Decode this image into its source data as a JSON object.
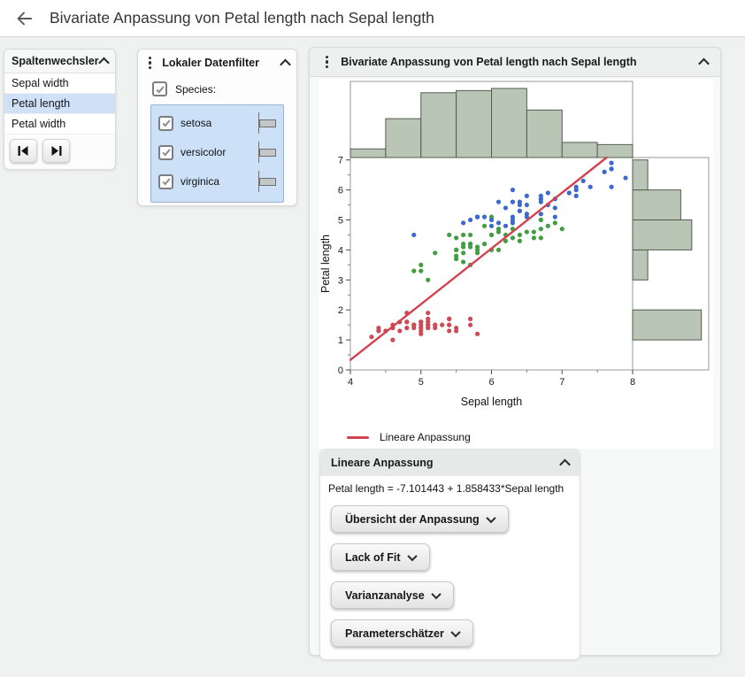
{
  "app_header": {
    "title": "Bivariate Anpassung von Petal length nach Sepal length"
  },
  "column_switcher": {
    "title": "Spaltenwechsler",
    "items": [
      "Sepal width",
      "Petal length",
      "Petal width"
    ],
    "selected_item": "Petal length"
  },
  "data_filter": {
    "title": "Lokaler Datenfilter",
    "group_label": "Species:",
    "levels": [
      "setosa",
      "versicolor",
      "virginica"
    ]
  },
  "report": {
    "title": "Bivariate Anpassung von Petal length nach Sepal length",
    "legend_label": "Lineare Anpassung",
    "fit_panel": {
      "title": "Lineare Anpassung",
      "equation": "Petal length = -7.101443 + 1.858433*Sepal length",
      "buttons": [
        "Übersicht der Anpassung",
        "Lack of Fit",
        "Varianzanalyse",
        "Parameterschätzer"
      ]
    }
  },
  "chart_data": {
    "type": "scatter",
    "title": "Bivariate Anpassung von Petal length nach Sepal length",
    "xlabel": "Sepal length",
    "ylabel": "Petal length",
    "xlim": [
      4,
      8
    ],
    "ylim": [
      0,
      7.08
    ],
    "x_ticks": [
      4,
      5,
      6,
      7,
      8
    ],
    "y_ticks": [
      0,
      1,
      2,
      3,
      4,
      5,
      6,
      7
    ],
    "grid": false,
    "legend_position": "bottom",
    "fit_line": {
      "label": "Lineare Anpassung",
      "intercept": -7.101443,
      "slope": 1.858433,
      "color": "#d5414e"
    },
    "marginal_x_histogram": {
      "axis": "Sepal length",
      "bin_start": 4.0,
      "bin_width": 0.5,
      "counts": [
        4,
        18,
        30,
        31,
        32,
        22,
        7,
        6
      ],
      "fill": "#b9c5b5"
    },
    "marginal_y_histogram": {
      "axis": "Petal length",
      "bin_start": 0,
      "bin_width": 1,
      "counts": [
        0,
        50,
        0,
        11,
        43,
        35,
        11
      ],
      "fill": "#b9c5b5"
    },
    "series": [
      {
        "name": "setosa",
        "color": "#d04955",
        "points": [
          [
            5.1,
            1.4
          ],
          [
            4.9,
            1.4
          ],
          [
            4.7,
            1.3
          ],
          [
            4.6,
            1.5
          ],
          [
            5.0,
            1.4
          ],
          [
            5.4,
            1.7
          ],
          [
            4.6,
            1.4
          ],
          [
            5.0,
            1.5
          ],
          [
            4.4,
            1.4
          ],
          [
            4.9,
            1.5
          ],
          [
            5.4,
            1.5
          ],
          [
            4.8,
            1.6
          ],
          [
            4.8,
            1.4
          ],
          [
            4.3,
            1.1
          ],
          [
            5.8,
            1.2
          ],
          [
            5.7,
            1.5
          ],
          [
            5.4,
            1.3
          ],
          [
            5.1,
            1.4
          ],
          [
            5.7,
            1.7
          ],
          [
            5.1,
            1.5
          ],
          [
            5.4,
            1.7
          ],
          [
            5.1,
            1.5
          ],
          [
            4.6,
            1.0
          ],
          [
            5.1,
            1.7
          ],
          [
            4.8,
            1.9
          ],
          [
            5.0,
            1.6
          ],
          [
            5.0,
            1.6
          ],
          [
            5.2,
            1.5
          ],
          [
            5.2,
            1.4
          ],
          [
            4.7,
            1.6
          ],
          [
            4.8,
            1.6
          ],
          [
            5.4,
            1.5
          ],
          [
            5.2,
            1.5
          ],
          [
            5.5,
            1.4
          ],
          [
            4.9,
            1.5
          ],
          [
            5.0,
            1.2
          ],
          [
            5.5,
            1.3
          ],
          [
            4.9,
            1.5
          ],
          [
            4.4,
            1.3
          ],
          [
            5.1,
            1.5
          ],
          [
            5.0,
            1.3
          ],
          [
            4.5,
            1.3
          ],
          [
            4.4,
            1.3
          ],
          [
            5.0,
            1.6
          ],
          [
            5.1,
            1.9
          ],
          [
            4.8,
            1.4
          ],
          [
            5.1,
            1.6
          ],
          [
            4.6,
            1.4
          ],
          [
            5.3,
            1.5
          ],
          [
            5.0,
            1.4
          ]
        ]
      },
      {
        "name": "versicolor",
        "color": "#3ea03c",
        "points": [
          [
            7.0,
            4.7
          ],
          [
            6.4,
            4.5
          ],
          [
            6.9,
            4.9
          ],
          [
            5.5,
            4.0
          ],
          [
            6.5,
            4.6
          ],
          [
            5.7,
            4.5
          ],
          [
            6.3,
            4.7
          ],
          [
            4.9,
            3.3
          ],
          [
            6.6,
            4.6
          ],
          [
            5.2,
            3.9
          ],
          [
            5.0,
            3.5
          ],
          [
            5.9,
            4.2
          ],
          [
            6.0,
            4.0
          ],
          [
            6.1,
            4.7
          ],
          [
            5.6,
            3.6
          ],
          [
            6.7,
            4.4
          ],
          [
            5.6,
            4.5
          ],
          [
            5.8,
            4.1
          ],
          [
            6.2,
            4.5
          ],
          [
            5.6,
            3.9
          ],
          [
            5.9,
            4.8
          ],
          [
            6.1,
            4.0
          ],
          [
            6.3,
            4.9
          ],
          [
            6.1,
            4.7
          ],
          [
            6.4,
            4.3
          ],
          [
            6.6,
            4.4
          ],
          [
            6.8,
            4.8
          ],
          [
            6.7,
            5.0
          ],
          [
            6.0,
            4.5
          ],
          [
            5.7,
            3.5
          ],
          [
            5.5,
            3.8
          ],
          [
            5.5,
            3.7
          ],
          [
            5.8,
            3.9
          ],
          [
            6.0,
            5.1
          ],
          [
            5.4,
            4.5
          ],
          [
            6.0,
            4.5
          ],
          [
            6.7,
            4.7
          ],
          [
            6.3,
            4.4
          ],
          [
            5.6,
            4.1
          ],
          [
            5.5,
            4.0
          ],
          [
            5.5,
            4.4
          ],
          [
            6.1,
            4.6
          ],
          [
            5.8,
            4.0
          ],
          [
            5.0,
            3.3
          ],
          [
            5.6,
            4.2
          ],
          [
            5.7,
            4.2
          ],
          [
            5.7,
            4.2
          ],
          [
            6.2,
            4.3
          ],
          [
            5.1,
            3.0
          ],
          [
            5.7,
            4.1
          ]
        ]
      },
      {
        "name": "virginica",
        "color": "#3b69d4",
        "points": [
          [
            6.3,
            6.0
          ],
          [
            5.8,
            5.1
          ],
          [
            7.1,
            5.9
          ],
          [
            6.3,
            5.6
          ],
          [
            6.5,
            5.8
          ],
          [
            7.6,
            6.6
          ],
          [
            4.9,
            4.5
          ],
          [
            7.3,
            6.3
          ],
          [
            6.7,
            5.8
          ],
          [
            7.2,
            6.1
          ],
          [
            6.5,
            5.1
          ],
          [
            6.4,
            5.3
          ],
          [
            6.8,
            5.5
          ],
          [
            5.7,
            5.0
          ],
          [
            5.8,
            5.1
          ],
          [
            6.4,
            5.3
          ],
          [
            6.5,
            5.5
          ],
          [
            7.7,
            6.7
          ],
          [
            7.7,
            6.9
          ],
          [
            6.0,
            5.0
          ],
          [
            6.9,
            5.7
          ],
          [
            5.6,
            4.9
          ],
          [
            7.7,
            6.7
          ],
          [
            6.3,
            4.9
          ],
          [
            6.7,
            5.7
          ],
          [
            7.2,
            6.0
          ],
          [
            6.2,
            4.8
          ],
          [
            6.1,
            4.9
          ],
          [
            6.4,
            5.6
          ],
          [
            7.2,
            5.8
          ],
          [
            7.4,
            6.1
          ],
          [
            7.9,
            6.4
          ],
          [
            6.4,
            5.6
          ],
          [
            6.3,
            5.1
          ],
          [
            6.1,
            5.6
          ],
          [
            7.7,
            6.1
          ],
          [
            6.3,
            5.6
          ],
          [
            6.4,
            5.5
          ],
          [
            6.0,
            4.8
          ],
          [
            6.9,
            5.4
          ],
          [
            6.7,
            5.6
          ],
          [
            6.9,
            5.1
          ],
          [
            5.8,
            5.1
          ],
          [
            6.8,
            5.9
          ],
          [
            6.7,
            5.7
          ],
          [
            6.7,
            5.2
          ],
          [
            6.3,
            5.0
          ],
          [
            6.5,
            5.2
          ],
          [
            6.2,
            5.4
          ],
          [
            5.9,
            5.1
          ]
        ]
      }
    ]
  }
}
